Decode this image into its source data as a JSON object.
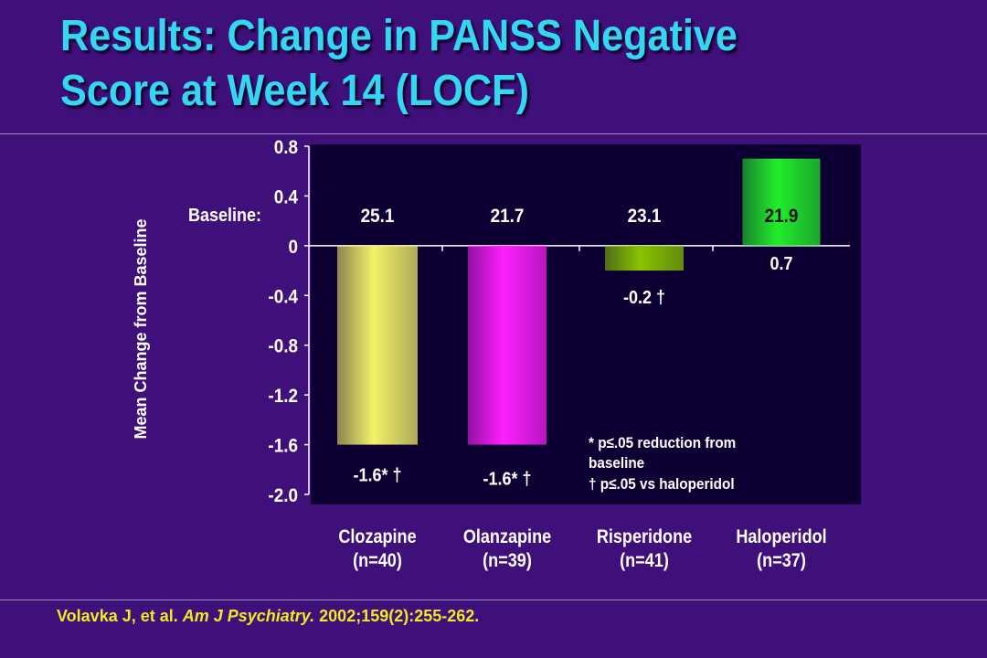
{
  "slide": {
    "title_line1": "Results: Change in PANSS Negative",
    "title_line2": "Score at Week 14 (LOCF)",
    "citation_authors": "Volavka J, et al. ",
    "citation_journal": "Am J Psychiatry.",
    "citation_details": " 2002;159(2):255-262."
  },
  "chart_data": {
    "type": "bar",
    "ylabel": "Mean Change from Baseline",
    "ylim": [
      -2.0,
      0.8
    ],
    "yticks": [
      "0.8",
      "0.4",
      "0",
      "-0.4",
      "-0.8",
      "-1.2",
      "-1.6",
      "-2.0"
    ],
    "ytick_values": [
      0.8,
      0.4,
      0,
      -0.4,
      -0.8,
      -1.2,
      -1.6,
      -2.0
    ],
    "baseline_label": "Baseline:",
    "categories": [
      {
        "name": "Clozapine",
        "n": "(n=40)"
      },
      {
        "name": "Olanzapine",
        "n": "(n=39)"
      },
      {
        "name": "Risperidone",
        "n": "(n=41)"
      },
      {
        "name": "Haloperidol",
        "n": "(n=37)"
      }
    ],
    "values": [
      -1.6,
      -1.6,
      -0.2,
      0.7
    ],
    "value_labels": [
      "-1.6* †",
      "-1.6* †",
      "-0.2 †",
      "0.7"
    ],
    "baselines": [
      "25.1",
      "21.7",
      "23.1",
      "21.9"
    ],
    "colors": [
      "#f4f26a",
      "#ff20ff",
      "#88c400",
      "#22ee2a"
    ],
    "footnote_line1": "* p≤.05 reduction from",
    "footnote_line2": "baseline",
    "footnote_line3": "† p≤.05 vs haloperidol",
    "grid": false,
    "background": "#3f107a",
    "plot_background": "#0c0032"
  }
}
